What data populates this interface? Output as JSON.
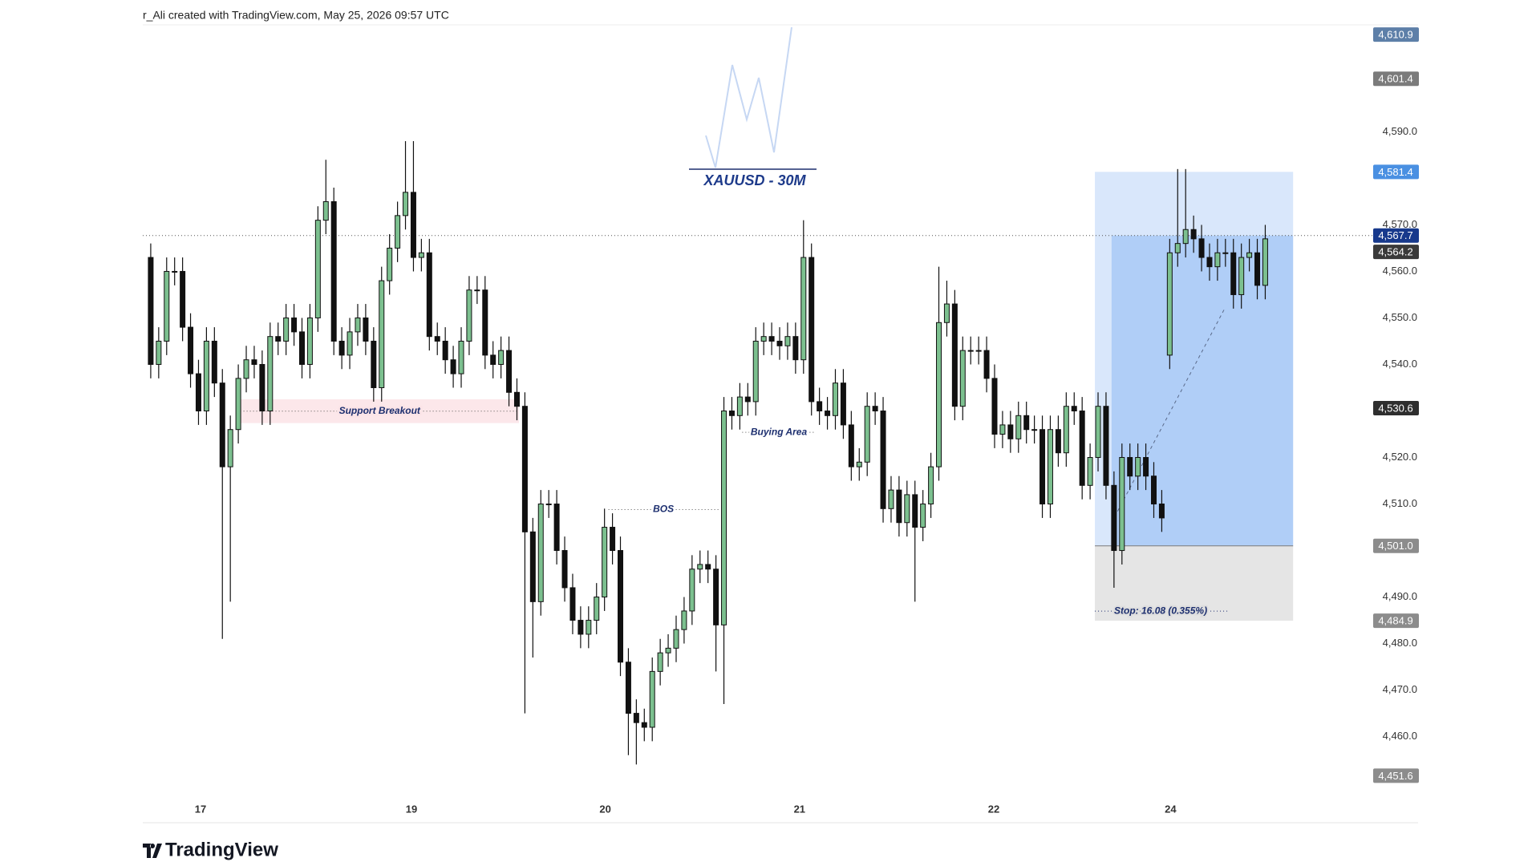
{
  "header": "r_Ali created with TradingView.com, May 25, 2026 09:57 UTC",
  "footer": "TradingView",
  "chart_data": {
    "type": "candlestick",
    "title": "XAUUSD - 30M",
    "up_color": "#7cc08f",
    "down_color": "#111111",
    "xlim": [
      -1,
      159.4
    ],
    "ylim": [
      4447,
      4613
    ],
    "xticks": [
      {
        "value": 6.25,
        "label": "17"
      },
      {
        "value": 32.75,
        "label": "19"
      },
      {
        "value": 57.1,
        "label": "20"
      },
      {
        "value": 81.5,
        "label": "21"
      },
      {
        "value": 105.9,
        "label": "22"
      },
      {
        "value": 128.1,
        "label": "24"
      }
    ],
    "yticks": [
      {
        "value": 4460,
        "label": "4,460.0"
      },
      {
        "value": 4470,
        "label": "4,470.0"
      },
      {
        "value": 4480,
        "label": "4,480.0"
      },
      {
        "value": 4490,
        "label": "4,490.0"
      },
      {
        "value": 4510,
        "label": "4,510.0"
      },
      {
        "value": 4520,
        "label": "4,520.0"
      },
      {
        "value": 4540,
        "label": "4,540.0"
      },
      {
        "value": 4550,
        "label": "4,550.0"
      },
      {
        "value": 4560,
        "label": "4,560.0"
      },
      {
        "value": 4570,
        "label": "4,570.0"
      },
      {
        "value": 4590,
        "label": "4,590.0"
      }
    ],
    "open": [
      4563,
      4540,
      4545,
      4560,
      4560,
      4548,
      4538,
      4530,
      4545,
      4536,
      4518,
      4526,
      4537,
      4541,
      4540,
      4530,
      4546,
      4545,
      4550,
      4547,
      4540,
      4550,
      4571,
      4575,
      4545,
      4542,
      4547,
      4550,
      4545,
      4535,
      4558,
      4565,
      4572,
      4577,
      4563,
      4564,
      4546,
      4545,
      4541,
      4538,
      4545,
      4556,
      4556,
      4542,
      4540,
      4543,
      4534,
      4531,
      4504,
      4489,
      4510,
      4510,
      4500,
      4492,
      4485,
      4482,
      4485,
      4490,
      4505,
      4500,
      4476,
      4465,
      4463,
      4462,
      4474,
      4478,
      4479,
      4483,
      4487,
      4496,
      4497,
      4496,
      4484,
      4530,
      4529,
      4533,
      4532,
      4545,
      4546,
      4545,
      4544,
      4546,
      4541,
      4563,
      4532,
      4530,
      4529,
      4536,
      4527,
      4518,
      4519,
      4531,
      4530,
      4509,
      4513,
      4506,
      4512,
      4505,
      4510,
      4518,
      4549,
      4553,
      4531,
      4543,
      4543,
      4543,
      4537,
      4525,
      4527,
      4524,
      4529,
      4526,
      4526,
      4510,
      4526,
      4521,
      4531,
      4530,
      4514,
      4520,
      4531,
      4514,
      4500,
      4520,
      4516,
      4520,
      4516,
      4510,
      4542,
      4564,
      4566,
      4569,
      4567,
      4563,
      4561,
      4564,
      4564,
      4555,
      4563,
      4564,
      4557
    ],
    "high": [
      4566,
      4548,
      4563,
      4563,
      4563,
      4551,
      4541,
      4548,
      4548,
      4539,
      4529,
      4540,
      4544,
      4544,
      4543,
      4549,
      4549,
      4553,
      4553,
      4550,
      4553,
      4574,
      4584,
      4578,
      4548,
      4550,
      4553,
      4553,
      4548,
      4561,
      4568,
      4575,
      4588,
      4588,
      4567,
      4567,
      4549,
      4548,
      4544,
      4548,
      4559,
      4559,
      4559,
      4545,
      4546,
      4546,
      4537,
      4534,
      4507,
      4513,
      4513,
      4513,
      4503,
      4495,
      4488,
      4488,
      4493,
      4509,
      4508,
      4503,
      4479,
      4468,
      4466,
      4477,
      4481,
      4482,
      4486,
      4490,
      4499,
      4500,
      4500,
      4499,
      4533,
      4533,
      4536,
      4536,
      4548,
      4549,
      4549,
      4548,
      4549,
      4549,
      4571,
      4566,
      4535,
      4533,
      4539,
      4539,
      4530,
      4522,
      4534,
      4534,
      4533,
      4516,
      4516,
      4515,
      4515,
      4513,
      4521,
      4561,
      4558,
      4556,
      4546,
      4546,
      4546,
      4546,
      4540,
      4530,
      4530,
      4532,
      4532,
      4529,
      4529,
      4529,
      4529,
      4534,
      4534,
      4533,
      4523,
      4534,
      4534,
      4517,
      4523,
      4523,
      4523,
      4523,
      4519,
      4513,
      4567,
      4582,
      4582,
      4572,
      4570,
      4566,
      4567,
      4567,
      4567,
      4566,
      4567,
      4567,
      4570
    ],
    "low": [
      4537,
      4537,
      4542,
      4557,
      4545,
      4535,
      4527,
      4527,
      4533,
      4481,
      4489,
      4523,
      4534,
      4537,
      4527,
      4527,
      4542,
      4542,
      4544,
      4537,
      4537,
      4547,
      4568,
      4542,
      4539,
      4539,
      4544,
      4542,
      4532,
      4532,
      4555,
      4562,
      4569,
      4560,
      4560,
      4543,
      4542,
      4538,
      4535,
      4535,
      4542,
      4553,
      4539,
      4537,
      4537,
      4531,
      4528,
      4465,
      4477,
      4486,
      4507,
      4497,
      4489,
      4482,
      4479,
      4479,
      4482,
      4487,
      4497,
      4473,
      4456,
      4454,
      4459,
      4459,
      4471,
      4475,
      4476,
      4480,
      4484,
      4493,
      4493,
      4474,
      4467,
      4526,
      4526,
      4529,
      4529,
      4542,
      4542,
      4541,
      4541,
      4538,
      4538,
      4529,
      4527,
      4526,
      4526,
      4524,
      4515,
      4515,
      4516,
      4527,
      4506,
      4506,
      4503,
      4503,
      4489,
      4502,
      4507,
      4515,
      4546,
      4528,
      4528,
      4540,
      4540,
      4534,
      4522,
      4522,
      4521,
      4521,
      4523,
      4523,
      4507,
      4507,
      4518,
      4518,
      4527,
      4511,
      4511,
      4517,
      4511,
      4492,
      4497,
      4513,
      4513,
      4513,
      4507,
      4504,
      4539,
      4561,
      4563,
      4564,
      4560,
      4558,
      4558,
      4561,
      4552,
      4552,
      4560,
      4554,
      4554
    ],
    "close": [
      4540,
      4545,
      4560,
      4560,
      4548,
      4538,
      4530,
      4545,
      4536,
      4518,
      4526,
      4537,
      4541,
      4540,
      4530,
      4546,
      4545,
      4550,
      4547,
      4540,
      4550,
      4571,
      4575,
      4545,
      4542,
      4547,
      4550,
      4545,
      4535,
      4558,
      4565,
      4572,
      4577,
      4563,
      4564,
      4546,
      4545,
      4541,
      4538,
      4545,
      4556,
      4556,
      4542,
      4540,
      4543,
      4534,
      4531,
      4504,
      4489,
      4510,
      4510,
      4500,
      4492,
      4485,
      4482,
      4485,
      4490,
      4505,
      4500,
      4476,
      4465,
      4463,
      4462,
      4474,
      4478,
      4479,
      4483,
      4487,
      4496,
      4497,
      4496,
      4484,
      4530,
      4529,
      4533,
      4532,
      4545,
      4546,
      4545,
      4544,
      4546,
      4541,
      4563,
      4532,
      4530,
      4529,
      4536,
      4527,
      4518,
      4519,
      4531,
      4530,
      4509,
      4513,
      4506,
      4512,
      4505,
      4510,
      4518,
      4549,
      4553,
      4531,
      4543,
      4543,
      4543,
      4537,
      4525,
      4527,
      4524,
      4529,
      4526,
      4526,
      4510,
      4526,
      4521,
      4531,
      4530,
      4514,
      4520,
      4531,
      4514,
      4500,
      4520,
      4516,
      4520,
      4516,
      4510,
      4507,
      4564,
      4566,
      4569,
      4567,
      4563,
      4561,
      4564,
      4564,
      4555,
      4563,
      4564,
      4557,
      4567
    ],
    "price_labels": [
      {
        "value": 4610.9,
        "label": "4,610.9",
        "color": "#5d7fa8"
      },
      {
        "value": 4601.4,
        "label": "4,601.4",
        "color": "#7b7b7b"
      },
      {
        "value": 4581.4,
        "label": "4,581.4",
        "color": "#4a90e2"
      },
      {
        "value": 4567.7,
        "label": "4,567.7",
        "color": "#17398c"
      },
      {
        "value": 4564.2,
        "label": "4,564.2",
        "color": "#3a3a3a"
      },
      {
        "value": 4530.6,
        "label": "4,530.6",
        "color": "#2e2e2e"
      },
      {
        "value": 4501.0,
        "label": "4,501.0",
        "color": "#8c8c8c"
      },
      {
        "value": 4484.9,
        "label": "4,484.9",
        "color": "#8c8c8c"
      },
      {
        "value": 4451.6,
        "label": "4,451.6",
        "color": "#8c8c8c"
      }
    ],
    "zones": [
      {
        "label": "Support Breakout",
        "x": [
          11.25,
          46.25
        ],
        "y": [
          4527.4,
          4532.5
        ]
      }
    ],
    "level_lines": [
      {
        "label": "Buying Area",
        "x": [
          74.3,
          83.5
        ],
        "y": 4525.4
      },
      {
        "label": "BOS",
        "x": [
          57.5,
          71.3
        ],
        "y": 4508.8
      }
    ],
    "position": {
      "x": [
        118.6,
        143.5
      ],
      "fill_x": 120.7,
      "stop_text": "Stop: 16.08 (0.355%)"
    },
    "trend_line": {
      "x": [
        120.7,
        134.9
      ],
      "y": [
        4506,
        4552
      ]
    }
  }
}
